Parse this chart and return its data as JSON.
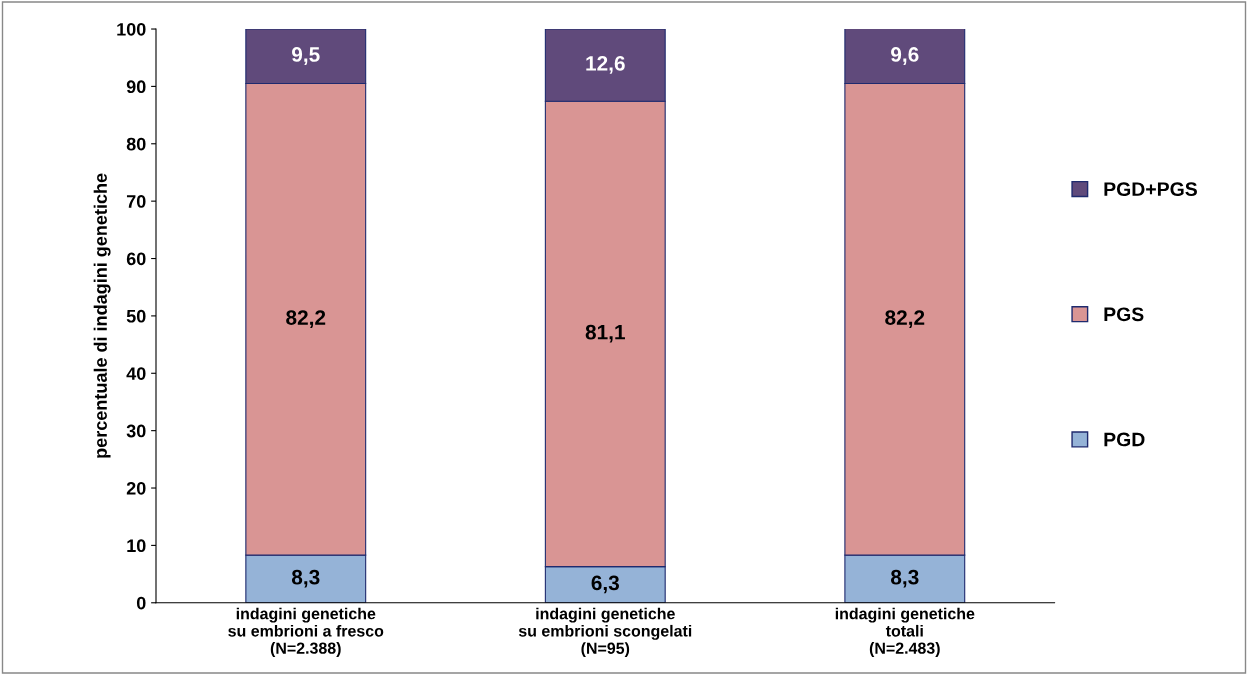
{
  "chart_data": {
    "type": "bar",
    "stacked": true,
    "ylabel": "percentuale di indagini genetiche",
    "categories": [
      "indagini genetiche\nsu embrioni a fresco\n(N=2.388)",
      "indagini genetiche\nsu embrioni scongelati\n(N=95)",
      "indagini genetiche\ntotali\n(N=2.483)"
    ],
    "series": [
      {
        "name": "PGD",
        "color": "#95b3d7",
        "values": [
          8.3,
          6.3,
          8.3
        ],
        "value_labels": [
          "8,3",
          "6,3",
          "8,3"
        ]
      },
      {
        "name": "PGS",
        "color": "#d99594",
        "values": [
          82.2,
          81.1,
          82.2
        ],
        "value_labels": [
          "82,2",
          "81,1",
          "82,2"
        ]
      },
      {
        "name": "PGD+PGS",
        "color": "#604a7b",
        "values": [
          9.5,
          12.6,
          9.6
        ],
        "value_labels": [
          "9,5",
          "12,6",
          "9,6"
        ]
      }
    ],
    "ylim": [
      0,
      100
    ],
    "yticks": [
      0,
      10,
      20,
      30,
      40,
      50,
      60,
      70,
      80,
      90,
      100
    ],
    "grid": false,
    "legend": "right"
  }
}
